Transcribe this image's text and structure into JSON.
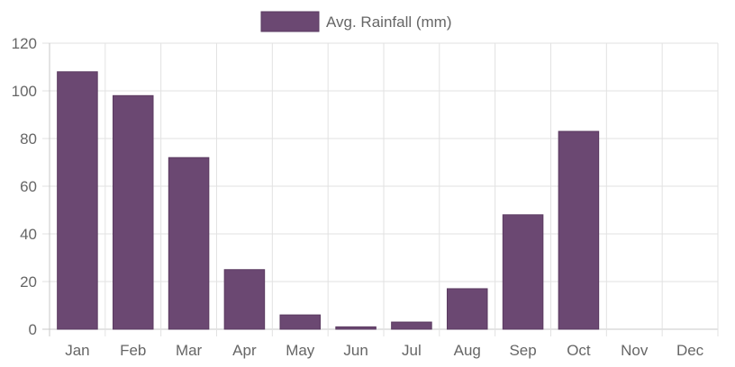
{
  "chart_data": {
    "type": "bar",
    "categories": [
      "Jan",
      "Feb",
      "Mar",
      "Apr",
      "May",
      "Jun",
      "Jul",
      "Aug",
      "Sep",
      "Oct",
      "Nov",
      "Dec"
    ],
    "series": [
      {
        "name": "Avg. Rainfall (mm)",
        "color": "#6b4872",
        "values": [
          108,
          98,
          72,
          25,
          6,
          1,
          3,
          17,
          48,
          83,
          0,
          0
        ]
      }
    ],
    "ylim": [
      0,
      120
    ],
    "yticks": [
      0,
      20,
      40,
      60,
      80,
      100,
      120
    ],
    "grid": true,
    "legend_position": "top-center"
  }
}
